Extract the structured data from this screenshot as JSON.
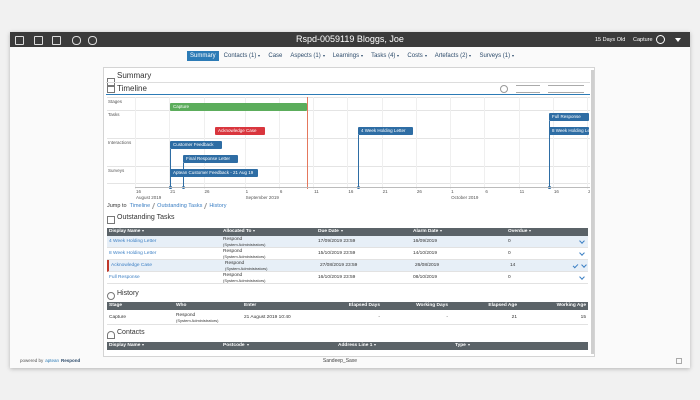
{
  "header": {
    "title": "Rspd-0059119 Bloggs, Joe",
    "age": "15 Days Old",
    "stage": "Capture"
  },
  "tabs": [
    "Summary",
    "Contacts (1)",
    "Case",
    "Aspects (1)",
    "Learnings",
    "Tasks (4)",
    "Costs",
    "Artefacts (2)",
    "Surveys (1)"
  ],
  "summary": {
    "title": "Summary"
  },
  "timeline": {
    "title": "Timeline",
    "rows": [
      "Stages",
      "Tasks",
      "Interactions",
      "Surveys"
    ],
    "events": [
      "Capture",
      "Acknowledge Case",
      "4 Week Holding Letter",
      "Full Response",
      "8 Week Holding Letter",
      "Customer Feedback",
      "Final Response Letter",
      "Aptean Customer Feedback - 21 Aug 19"
    ],
    "days": [
      16,
      21,
      26,
      1,
      6,
      11,
      16,
      21,
      26,
      1,
      6,
      11,
      16,
      21
    ],
    "months": [
      "August 2019",
      "September 2019",
      "October 2019"
    ]
  },
  "jump": {
    "label": "Jump to",
    "links": [
      "Timeline",
      "Outstanding Tasks",
      "History"
    ]
  },
  "outstanding_tasks": {
    "title": "Outstanding Tasks",
    "columns": [
      "Display Name",
      "Allocated To",
      "Due Date",
      "Alarm Date",
      "Overdue"
    ],
    "rows": [
      [
        "4 Week Holding Letter",
        [
          "Respond",
          "(System Administrators)"
        ],
        "17/09/2019 23:59",
        "16/09/2019",
        0
      ],
      [
        "8 Week Holding Letter",
        [
          "Respond",
          "(System Administrators)"
        ],
        "15/10/2019 23:59",
        "14/10/2019",
        0
      ],
      [
        "Acknowledge Case",
        [
          "Respond",
          "(System Administrators)"
        ],
        "27/08/2019 23:59",
        "26/08/2019",
        14
      ],
      [
        "Full Response",
        [
          "Respond",
          "(System Administrators)"
        ],
        "16/10/2019 23:59",
        "08/10/2019",
        0
      ]
    ]
  },
  "history": {
    "title": "History",
    "columns": [
      "Stage",
      "Who",
      "Enter",
      "Elapsed Days",
      "Working Days",
      "Elapsed Age",
      "Working Age"
    ],
    "rows": [
      [
        "Capture",
        [
          "Respond",
          "(System Administrators)"
        ],
        "21 August 2019 10:40",
        "-",
        "-",
        21,
        15
      ]
    ]
  },
  "contacts": {
    "title": "Contacts",
    "columns": [
      "Display Name",
      "Postcode",
      "Address Line 1",
      "Type"
    ]
  },
  "footer": {
    "powered_by": "powered by",
    "brand": "aptean",
    "product": "Respond",
    "user": "Sandeep_Saxe"
  }
}
